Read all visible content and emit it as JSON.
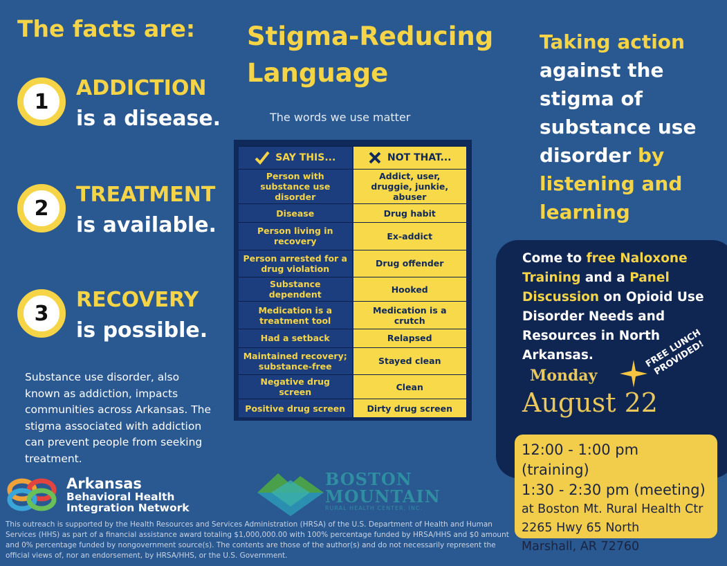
{
  "facts": {
    "title": "The facts are:",
    "items": [
      {
        "number": "1",
        "keyword": "ADDICTION",
        "rest": "is a disease."
      },
      {
        "number": "2",
        "keyword": "TREATMENT",
        "rest": "is available."
      },
      {
        "number": "3",
        "keyword": "RECOVERY",
        "rest": "is possible."
      }
    ],
    "paragraph": "Substance use disorder, also known as addiction, impacts communities across Arkansas. The stigma associated with addiction can prevent people from seeking treatment."
  },
  "stigma": {
    "title": "Stigma-Reducing Language",
    "subtitle": "The words we use matter",
    "table": {
      "headers": [
        "SAY THIS...",
        "NOT THAT..."
      ],
      "rows": [
        [
          "Person with substance use disorder",
          "Addict, user, druggie, junkie, abuser"
        ],
        [
          "Disease",
          "Drug habit"
        ],
        [
          "Person living in recovery",
          "Ex-addict"
        ],
        [
          "Person arrested for a drug violation",
          "Drug offender"
        ],
        [
          "Substance dependent",
          "Hooked"
        ],
        [
          "Medication is a treatment tool",
          "Medication is a crutch"
        ],
        [
          "Had a setback",
          "Relapsed"
        ],
        [
          "Maintained recovery; substance-free",
          "Stayed clean"
        ],
        [
          "Negative drug screen",
          "Clean"
        ],
        [
          "Positive drug screen",
          "Dirty drug screen"
        ]
      ]
    }
  },
  "action": [
    {
      "text": "Taking action",
      "highlight": true
    },
    {
      "text": "against the stigma of substance use disorder",
      "highlight": false
    },
    {
      "text": "by listening and learning",
      "highlight": true
    }
  ],
  "event": {
    "intro": [
      {
        "text": "Come to",
        "highlight": false
      },
      {
        "text": "free Naloxone Training",
        "highlight": true
      },
      {
        "text": "and a",
        "highlight": false
      },
      {
        "text": "Panel Discussion",
        "highlight": true
      },
      {
        "text": "on Opioid Use Disorder Needs and Resources in North Arkansas.",
        "highlight": false
      }
    ],
    "badge": "FREE LUNCH PROVIDED!",
    "day": "Monday",
    "date": "August 22",
    "schedule": [
      "12:00 - 1:00 pm (training)",
      "1:30 - 2:30 pm (meeting)"
    ],
    "location": [
      "at Boston Mt. Rural Health Ctr",
      "2265 Hwy 65 North",
      "Marshall, AR 72760"
    ]
  },
  "logos": {
    "abhin": [
      "Arkansas",
      "Behavioral Health",
      "Integration Network"
    ],
    "boston": [
      "BOSTON",
      "MOUNTAIN",
      "RURAL HEALTH CENTER, INC."
    ]
  },
  "disclaimer": "This outreach is supported by the Health Resources and Services Administration (HRSA) of the U.S. Department of Health and Human Services (HHS) as part of a financial assistance award totaling $1,000,000.00 with 100% percentage funded by HRSA/HHS and $0 amount and 0% percentage funded by nongovernment source(s). The contents are those of the author(s) and do not necessarily represent the official views of, nor an endorsement, by HRSA/HHS, or the U.S. Government."
}
